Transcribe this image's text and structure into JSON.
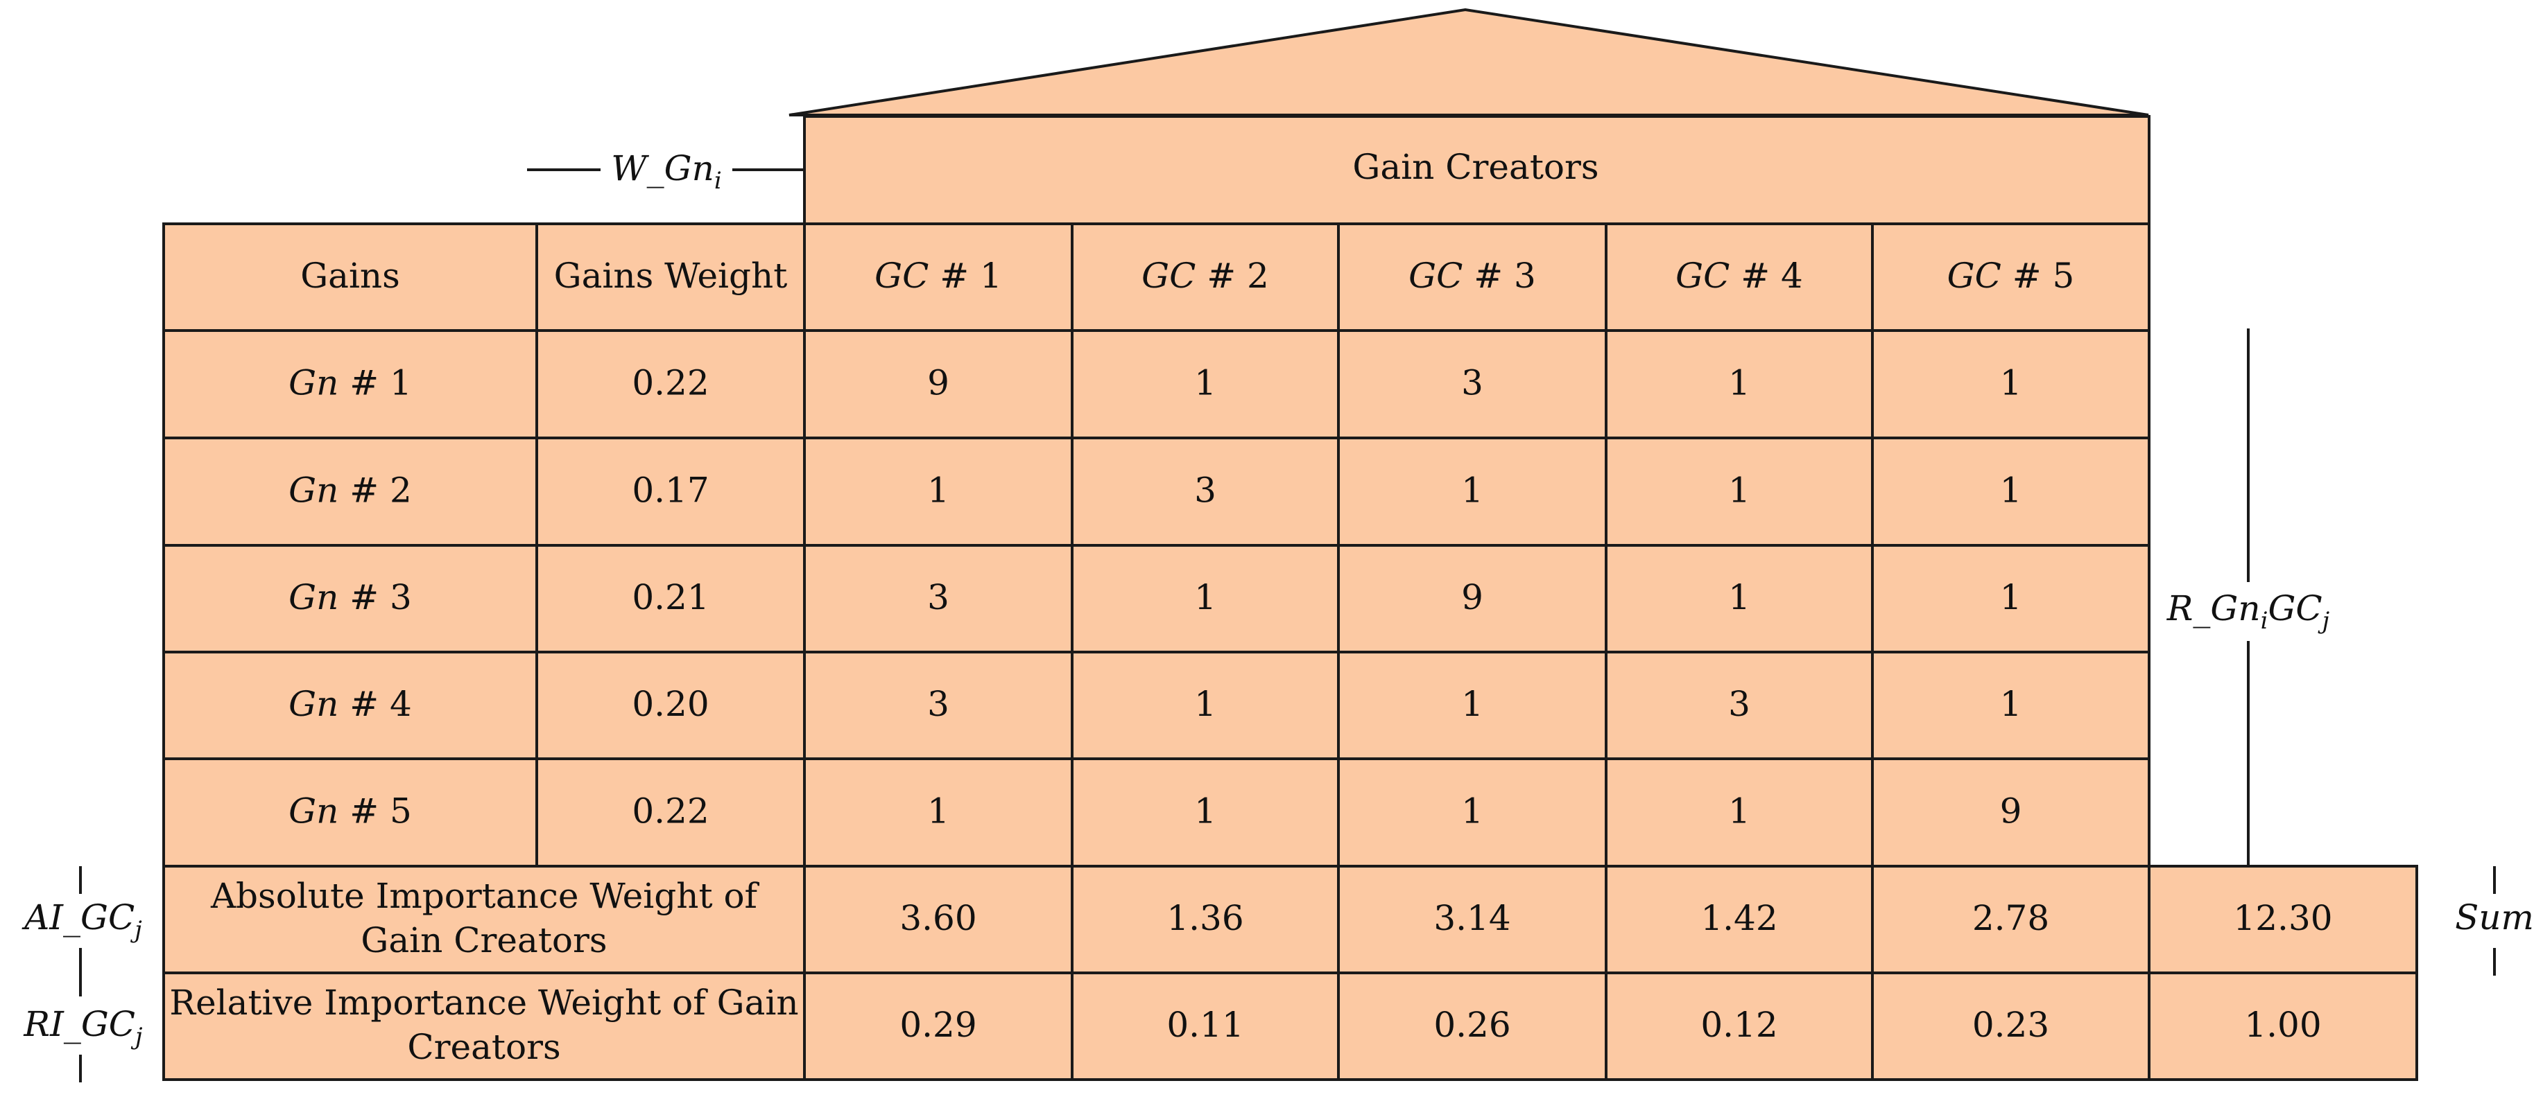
{
  "roof_title": "Gain Creators",
  "weight_symbol": {
    "base": "W_Gn",
    "sub": "i"
  },
  "relation_symbol": {
    "p1": "R_Gn",
    "s1": "i",
    "p2": "GC",
    "s2": "j"
  },
  "ai_symbol": {
    "base": "AI_GC",
    "sub": "j"
  },
  "ri_symbol": {
    "base": "RI_GC",
    "sub": "j"
  },
  "sum_label": "Sum",
  "headers": {
    "gains": "Gains",
    "weight": "Gains Weight",
    "gc": [
      {
        "pre": "GC",
        "num": " # 1"
      },
      {
        "pre": "GC",
        "num": " # 2"
      },
      {
        "pre": "GC",
        "num": " # 3"
      },
      {
        "pre": "GC",
        "num": " # 4"
      },
      {
        "pre": "GC",
        "num": " # 5"
      }
    ]
  },
  "rows": [
    {
      "pre": "Gn",
      "num": " # 1",
      "weight": "0.22",
      "values": [
        "9",
        "1",
        "3",
        "1",
        "1"
      ]
    },
    {
      "pre": "Gn",
      "num": " # 2",
      "weight": "0.17",
      "values": [
        "1",
        "3",
        "1",
        "1",
        "1"
      ]
    },
    {
      "pre": "Gn",
      "num": " # 3",
      "weight": "0.21",
      "values": [
        "3",
        "1",
        "9",
        "1",
        "1"
      ]
    },
    {
      "pre": "Gn",
      "num": " # 4",
      "weight": "0.20",
      "values": [
        "3",
        "1",
        "1",
        "3",
        "1"
      ]
    },
    {
      "pre": "Gn",
      "num": " # 5",
      "weight": "0.22",
      "values": [
        "1",
        "1",
        "1",
        "1",
        "9"
      ]
    }
  ],
  "absolute": {
    "label_line1": "Absolute Importance Weight of",
    "label_line2": "Gain Creators",
    "values": [
      "3.60",
      "1.36",
      "3.14",
      "1.42",
      "2.78"
    ],
    "sum": "12.30"
  },
  "relative": {
    "label_line1": "Relative Importance Weight of Gain",
    "label_line2": "Creators",
    "values": [
      "0.29",
      "0.11",
      "0.26",
      "0.12",
      "0.23"
    ],
    "sum": "1.00"
  }
}
